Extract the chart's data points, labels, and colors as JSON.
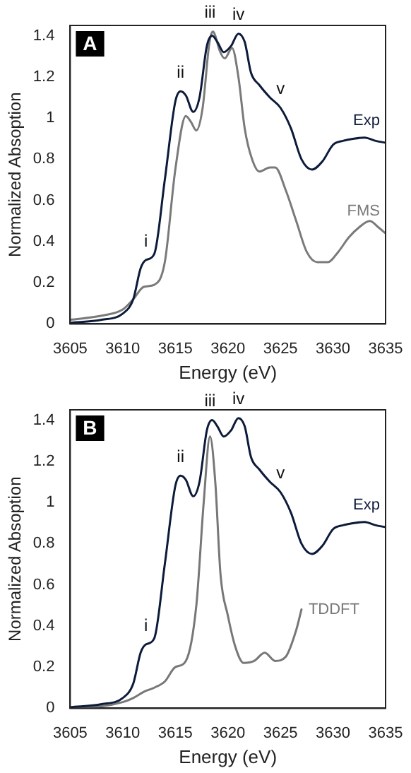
{
  "chart_data": [
    {
      "type": "line",
      "title": "A",
      "xlabel": "Energy (eV)",
      "ylabel": "Normalized Absoption",
      "xlim": [
        3605,
        3635
      ],
      "xticks": [
        3605,
        3610,
        3615,
        3620,
        3625,
        3630,
        3635
      ],
      "ylim": [
        0,
        1.45
      ],
      "yticks": [
        0,
        0.2,
        0.4,
        0.6,
        0.8,
        1,
        1.2,
        1.4
      ],
      "grid": false,
      "legend": false,
      "marker": "none",
      "line_style": "solid",
      "annotations": [
        {
          "text": "i",
          "x": 3612.2,
          "y": 0.31
        },
        {
          "text": "ii",
          "x": 3615.5,
          "y": 1.13
        },
        {
          "text": "iii",
          "x": 3618.3,
          "y": 1.42
        },
        {
          "text": "iv",
          "x": 3621,
          "y": 1.41
        },
        {
          "text": "v",
          "x": 3625,
          "y": 1.05
        }
      ],
      "series": [
        {
          "name": "Exp",
          "color": "#0d1b3a",
          "x": [
            3605,
            3608,
            3610,
            3611,
            3611.7,
            3612.2,
            3613,
            3614,
            3615,
            3615.5,
            3616,
            3616.7,
            3617.3,
            3618,
            3618.5,
            3619,
            3619.6,
            3620.3,
            3621,
            3621.6,
            3622.2,
            3623,
            3624,
            3625,
            3626,
            3627,
            3628,
            3629,
            3630,
            3631,
            3632,
            3633,
            3634,
            3635
          ],
          "values": [
            0.005,
            0.02,
            0.05,
            0.12,
            0.27,
            0.31,
            0.34,
            0.7,
            1.08,
            1.13,
            1.11,
            1.03,
            1.1,
            1.35,
            1.4,
            1.37,
            1.32,
            1.35,
            1.41,
            1.37,
            1.22,
            1.16,
            1.1,
            1.05,
            0.95,
            0.8,
            0.75,
            0.79,
            0.87,
            0.89,
            0.9,
            0.905,
            0.89,
            0.88
          ]
        },
        {
          "name": "FMS",
          "color": "#7a7a7a",
          "x": [
            3605,
            3608,
            3610,
            3611,
            3612,
            3613,
            3614,
            3615,
            3616,
            3616.5,
            3617,
            3617.6,
            3618.2,
            3618.4,
            3618.6,
            3618.8,
            3619.2,
            3619.7,
            3620.4,
            3621,
            3621.6,
            3622.3,
            3623,
            3624,
            3624.5,
            3625.5,
            3626.5,
            3627.5,
            3628.5,
            3629.5,
            3630.5,
            3631.5,
            3632.5,
            3633.5,
            3634.3,
            3635
          ],
          "values": [
            0.02,
            0.04,
            0.07,
            0.12,
            0.18,
            0.19,
            0.3,
            0.75,
            1.01,
            0.98,
            0.94,
            1.05,
            1.35,
            1.405,
            1.42,
            1.4,
            1.33,
            1.29,
            1.34,
            1.2,
            0.95,
            0.8,
            0.74,
            0.76,
            0.76,
            0.65,
            0.5,
            0.35,
            0.3,
            0.3,
            0.35,
            0.42,
            0.47,
            0.5,
            0.47,
            0.44
          ]
        }
      ]
    },
    {
      "type": "line",
      "title": "B",
      "xlabel": "Energy (eV)",
      "ylabel": "Normalized Absoption",
      "xlim": [
        3605,
        3635
      ],
      "xticks": [
        3605,
        3610,
        3615,
        3620,
        3625,
        3630,
        3635
      ],
      "ylim": [
        0,
        1.45
      ],
      "yticks": [
        0,
        0.2,
        0.4,
        0.6,
        0.8,
        1,
        1.2,
        1.4
      ],
      "grid": false,
      "legend": false,
      "marker": "none",
      "line_style": "solid",
      "annotations": [
        {
          "text": "i",
          "x": 3612.2,
          "y": 0.31
        },
        {
          "text": "ii",
          "x": 3615.5,
          "y": 1.13
        },
        {
          "text": "iii",
          "x": 3618.3,
          "y": 1.4
        },
        {
          "text": "iv",
          "x": 3621,
          "y": 1.41
        },
        {
          "text": "v",
          "x": 3625,
          "y": 1.05
        }
      ],
      "series": [
        {
          "name": "Exp",
          "color": "#0d1b3a",
          "x": [
            3605,
            3608,
            3610,
            3611,
            3611.7,
            3612.2,
            3613,
            3614,
            3615,
            3615.5,
            3616,
            3616.7,
            3617.3,
            3618,
            3618.5,
            3619,
            3619.6,
            3620.3,
            3621,
            3621.6,
            3622.2,
            3623,
            3624,
            3625,
            3626,
            3627,
            3628,
            3629,
            3630,
            3631,
            3632,
            3633,
            3634,
            3635
          ],
          "values": [
            0.005,
            0.02,
            0.05,
            0.12,
            0.27,
            0.31,
            0.34,
            0.7,
            1.08,
            1.13,
            1.11,
            1.03,
            1.1,
            1.35,
            1.4,
            1.37,
            1.32,
            1.35,
            1.41,
            1.37,
            1.22,
            1.16,
            1.1,
            1.05,
            0.95,
            0.8,
            0.75,
            0.79,
            0.87,
            0.89,
            0.9,
            0.905,
            0.89,
            0.88
          ]
        },
        {
          "name": "TDDFT",
          "color": "#777777",
          "x": [
            3605,
            3608,
            3610,
            3611,
            3612,
            3613,
            3614,
            3615,
            3616,
            3617,
            3617.7,
            3618.3,
            3618.8,
            3619.3,
            3620,
            3620.7,
            3621.5,
            3622.5,
            3623.5,
            3624.5,
            3625.5,
            3626.5,
            3627
          ],
          "values": [
            0.005,
            0.01,
            0.03,
            0.05,
            0.08,
            0.1,
            0.13,
            0.2,
            0.23,
            0.5,
            1.0,
            1.32,
            1.1,
            0.65,
            0.45,
            0.3,
            0.22,
            0.23,
            0.27,
            0.23,
            0.25,
            0.38,
            0.48
          ]
        }
      ]
    }
  ]
}
